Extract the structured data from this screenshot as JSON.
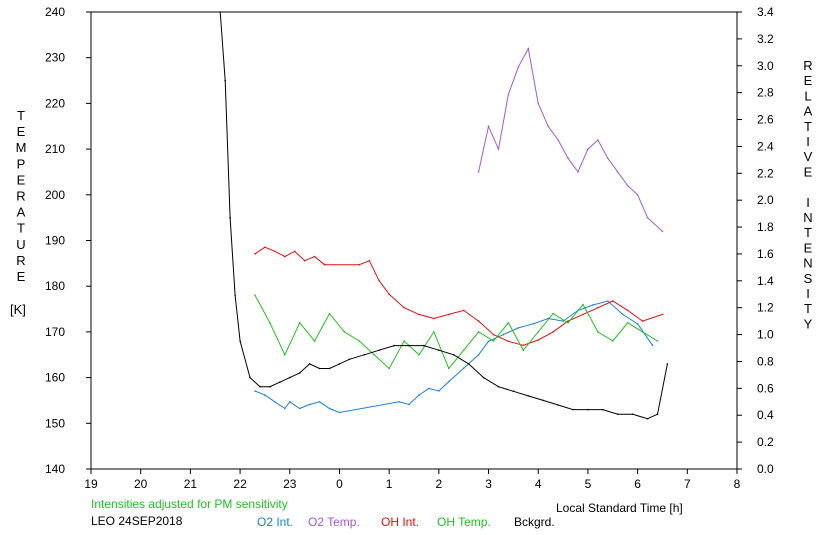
{
  "chart_data": {
    "type": "line",
    "left_axis_label": "TEMPERATURE",
    "left_axis_unit": "[K]",
    "right_axis_label": "RELATIVE INTENSITY",
    "x_axis_label": "Local Standard Time [h]",
    "note": "Intensities adjusted for PM sensitivity",
    "station": "LEO 24SEP2018",
    "x_tick_labels": [
      "19",
      "20",
      "21",
      "22",
      "23",
      "0",
      "1",
      "2",
      "3",
      "4",
      "5",
      "6",
      "7",
      "8"
    ],
    "ylim_left": [
      140,
      240
    ],
    "yticks_left": [
      140,
      150,
      160,
      170,
      180,
      190,
      200,
      210,
      220,
      230,
      240
    ],
    "ylim_right": [
      0,
      3.4
    ],
    "yticks_right": [
      "0.0",
      "0.2",
      "0.4",
      "0.6",
      "0.8",
      "1.0",
      "1.2",
      "1.4",
      "1.6",
      "1.8",
      "2.0",
      "2.2",
      "2.4",
      "2.6",
      "2.8",
      "3.0",
      "3.2",
      "3.4"
    ],
    "grid": false,
    "colors": {
      "o2_int": "#1a7fe0",
      "o2_temp": "#a05ad8",
      "oh_int": "#e01010",
      "oh_temp": "#22c022",
      "bckgrd": "#000000",
      "note": "#22c022"
    },
    "series": [
      {
        "name": "O2 Int.",
        "color_key": "o2_int",
        "axis": "right",
        "x": [
          22.3,
          22.5,
          22.7,
          22.9,
          23.0,
          23.2,
          23.4,
          23.6,
          23.8,
          24.0,
          25.2,
          25.4,
          25.6,
          25.8,
          26.0,
          26.2,
          26.5,
          26.8,
          27.0,
          27.3,
          27.6,
          27.9,
          28.2,
          28.5,
          28.8,
          29.1,
          29.4,
          29.7,
          30.0,
          30.3
        ],
        "y": [
          0.58,
          0.55,
          0.5,
          0.45,
          0.5,
          0.45,
          0.48,
          0.5,
          0.45,
          0.42,
          0.5,
          0.48,
          0.55,
          0.6,
          0.58,
          0.65,
          0.75,
          0.85,
          0.95,
          1.0,
          1.05,
          1.08,
          1.12,
          1.1,
          1.18,
          1.22,
          1.25,
          1.15,
          1.08,
          0.92
        ]
      },
      {
        "name": "O2 Temp.",
        "color_key": "o2_temp",
        "axis": "left",
        "x": [
          26.8,
          27.0,
          27.2,
          27.4,
          27.6,
          27.8,
          28.0,
          28.2,
          28.4,
          28.6,
          28.8,
          29.0,
          29.2,
          29.4,
          29.6,
          29.8,
          30.0,
          30.2,
          30.5
        ],
        "y": [
          205,
          215,
          210,
          222,
          228,
          232,
          220,
          215,
          212,
          208,
          205,
          210,
          212,
          208,
          205,
          202,
          200,
          195,
          192
        ]
      },
      {
        "name": "OH Int.",
        "color_key": "oh_int",
        "axis": "right",
        "x": [
          22.3,
          22.5,
          22.7,
          22.9,
          23.1,
          23.3,
          23.5,
          23.7,
          24.4,
          24.6,
          24.8,
          25.0,
          25.3,
          25.6,
          25.9,
          26.2,
          26.5,
          26.8,
          27.1,
          27.4,
          27.7,
          28.0,
          28.3,
          28.6,
          28.9,
          29.2,
          29.5,
          29.8,
          30.1,
          30.5
        ],
        "y": [
          1.6,
          1.65,
          1.62,
          1.58,
          1.62,
          1.55,
          1.58,
          1.52,
          1.52,
          1.55,
          1.4,
          1.3,
          1.2,
          1.15,
          1.12,
          1.15,
          1.18,
          1.1,
          1.0,
          0.95,
          0.92,
          0.96,
          1.02,
          1.1,
          1.15,
          1.2,
          1.25,
          1.18,
          1.1,
          1.15
        ]
      },
      {
        "name": "OH Temp.",
        "color_key": "oh_temp",
        "axis": "left",
        "x": [
          22.3,
          22.6,
          22.9,
          23.2,
          23.5,
          23.8,
          24.1,
          24.4,
          24.7,
          25.0,
          25.3,
          25.6,
          25.9,
          26.2,
          26.5,
          26.8,
          27.1,
          27.4,
          27.7,
          28.0,
          28.3,
          28.6,
          28.9,
          29.2,
          29.5,
          29.8,
          30.1,
          30.4
        ],
        "y": [
          178,
          172,
          165,
          172,
          168,
          174,
          170,
          168,
          165,
          162,
          168,
          165,
          170,
          162,
          166,
          170,
          168,
          172,
          166,
          170,
          174,
          172,
          176,
          170,
          168,
          172,
          170,
          168
        ]
      },
      {
        "name": "Bckgrd.",
        "color_key": "bckgrd",
        "axis": "left",
        "x": [
          21.6,
          21.7,
          21.8,
          21.9,
          22.0,
          22.2,
          22.4,
          22.6,
          22.8,
          23.0,
          23.2,
          23.4,
          23.6,
          23.8,
          24.0,
          24.2,
          24.5,
          24.8,
          25.1,
          25.4,
          25.7,
          26.0,
          26.3,
          26.6,
          26.9,
          27.2,
          27.5,
          27.8,
          28.1,
          28.4,
          28.7,
          29.0,
          29.3,
          29.6,
          29.9,
          30.2,
          30.4,
          30.6
        ],
        "y": [
          240,
          225,
          195,
          178,
          168,
          160,
          158,
          158,
          159,
          160,
          161,
          163,
          162,
          162,
          163,
          164,
          165,
          166,
          167,
          167,
          167,
          166,
          165,
          163,
          160,
          158,
          157,
          156,
          155,
          154,
          153,
          153,
          153,
          152,
          152,
          151,
          152,
          163
        ]
      }
    ]
  }
}
